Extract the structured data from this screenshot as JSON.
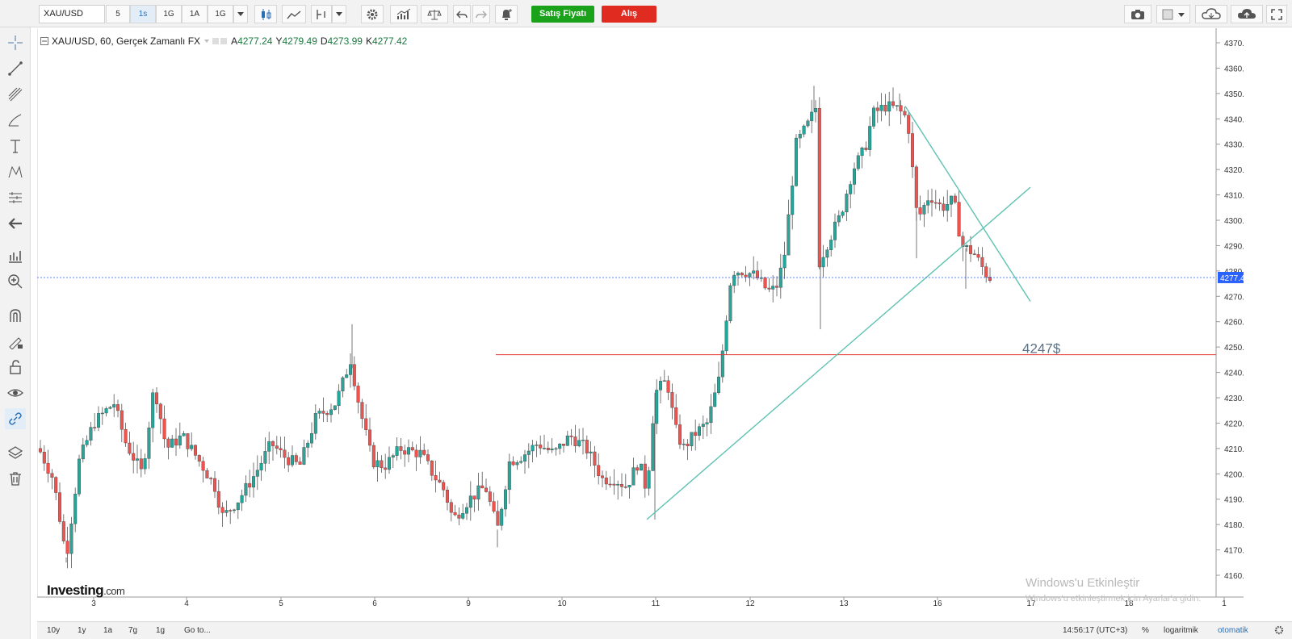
{
  "toolbar": {
    "symbol": "XAU/USD",
    "intervals": [
      "5",
      "1s",
      "1G",
      "1A",
      "1G"
    ],
    "active_interval_index": 1,
    "sell_label": "Satış Fiyatı",
    "buy_label": "Alış"
  },
  "legend": {
    "title": "XAU/USD, 60, Gerçek Zamanlı FX",
    "open_label": "A",
    "open": "4277.24",
    "high_label": "Y",
    "high": "4279.49",
    "low_label": "D",
    "low": "4273.99",
    "close_label": "K",
    "close": "4277.42"
  },
  "logo": {
    "brand": "Investing",
    "suffix": ".com"
  },
  "annotation_text": "4247$",
  "watermark": {
    "title": "Windows'u Etkinleştir",
    "subtitle": "Windows'u etkinleştirmek için Ayarlar'a gidin."
  },
  "bottom": {
    "ranges": [
      "10y",
      "1y",
      "1a",
      "7g",
      "1g"
    ],
    "goto": "Go to...",
    "time": "14:56:17 (UTC+3)",
    "percent": "%",
    "log": "logaritmik",
    "auto": "otomatik"
  },
  "colors": {
    "up": "#26a69a",
    "down": "#ef5350",
    "trend": "#5fc2b2",
    "hline": "#e53935",
    "price_tag": "#2962ff"
  },
  "chart_data": {
    "type": "candlestick",
    "symbol": "XAU/USD",
    "interval": "60",
    "ylim": [
      4155,
      4375
    ],
    "y_ticks": [
      4160,
      4170,
      4180,
      4190,
      4200,
      4210,
      4220,
      4230,
      4240,
      4250,
      4260,
      4270,
      4280,
      4290,
      4300,
      4310,
      4320,
      4330,
      4340,
      4350,
      4360,
      4370
    ],
    "x_ticks": [
      "3",
      "4",
      "5",
      "6",
      "9",
      "10",
      "11",
      "12",
      "13",
      "16",
      "17",
      "18",
      "1"
    ],
    "current_price": "4277.42",
    "horizontal_line": 4247,
    "key_points": [
      {
        "label": "start",
        "price": 4210
      },
      {
        "label": "low",
        "price": 4167
      },
      {
        "label": "high_day5",
        "price": 4258
      },
      {
        "label": "low_day9",
        "price": 4173
      },
      {
        "label": "low_day11",
        "price": 4182
      },
      {
        "label": "high_day12",
        "price": 4352
      },
      {
        "label": "low_day12",
        "price": 4257
      },
      {
        "label": "high_day13",
        "price": 4350
      },
      {
        "label": "last",
        "price": 4277.42
      }
    ],
    "trendlines": [
      {
        "from": {
          "x": "11",
          "y": 4182
        },
        "to": {
          "x": "17",
          "y": 4313
        }
      },
      {
        "from": {
          "x": "13",
          "y": 4345
        },
        "to": {
          "x": "17",
          "y": 4268
        }
      }
    ]
  }
}
